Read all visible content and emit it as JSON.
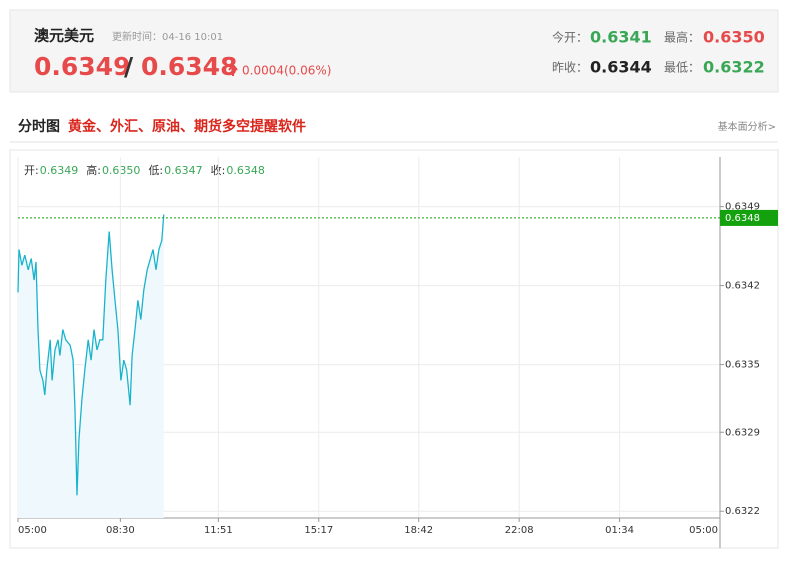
{
  "header": {
    "name": "澳元美元",
    "update_time": "更新时间：04-16 10:01",
    "bid": "0.6349",
    "separator": "/",
    "ask": "0.6348",
    "change": "0.0004(0.06%)",
    "stats": [
      {
        "label": "今开：",
        "value": "0.6341"
      },
      {
        "label": "最高：",
        "value": "0.6350"
      },
      {
        "label": "昨收：",
        "value": "0.6344"
      },
      {
        "label": "最低：",
        "value": "0.6322"
      }
    ]
  },
  "section": {
    "title": "分时图",
    "promo": "黄金、外汇、原油、期货多空提醒软件",
    "link": "基本面分析>"
  },
  "ohlc": [
    {
      "label": "开:",
      "value": "0.6349"
    },
    {
      "label": "高:",
      "value": "0.6350"
    },
    {
      "label": "低:",
      "value": "0.6347"
    },
    {
      "label": "收:",
      "value": "0.6348"
    }
  ],
  "chart_data": {
    "type": "line",
    "color": "#19b4cc",
    "area_color": "#eef8fd",
    "grid": true,
    "x": [
      0,
      2,
      8,
      14,
      21,
      27,
      33,
      37,
      41,
      45,
      51,
      55,
      59,
      66,
      70,
      76,
      82,
      86,
      92,
      98,
      107,
      113,
      117,
      121,
      125,
      131,
      137,
      144,
      150,
      156,
      162,
      168,
      174,
      180,
      187,
      193,
      199,
      205,
      211,
      217,
      223,
      230,
      234,
      240,
      246,
      252,
      258,
      265,
      271,
      277,
      283,
      289,
      295,
      299
    ],
    "values": [
      0.63414,
      0.63452,
      0.63438,
      0.63447,
      0.63434,
      0.63444,
      0.63425,
      0.63441,
      0.63381,
      0.63345,
      0.63336,
      0.63323,
      0.63345,
      0.63372,
      0.63336,
      0.63363,
      0.63372,
      0.63358,
      0.63381,
      0.63372,
      0.63367,
      0.63354,
      0.6331,
      0.63234,
      0.63283,
      0.63319,
      0.63345,
      0.63372,
      0.63354,
      0.63381,
      0.63363,
      0.63372,
      0.63372,
      0.63425,
      0.63468,
      0.63434,
      0.63407,
      0.63381,
      0.63336,
      0.63354,
      0.63345,
      0.63314,
      0.63358,
      0.63381,
      0.63407,
      0.6339,
      0.63416,
      0.63434,
      0.63443,
      0.63452,
      0.63434,
      0.63452,
      0.6346,
      0.63483
    ],
    "xlim": [
      0,
      1440
    ],
    "xticks": [
      {
        "value": 0,
        "label": "05:00"
      },
      {
        "value": 210,
        "label": "08:30"
      },
      {
        "value": 411,
        "label": "11:51"
      },
      {
        "value": 617,
        "label": "15:17"
      },
      {
        "value": 822,
        "label": "18:42"
      },
      {
        "value": 1028,
        "label": "22:08"
      },
      {
        "value": 1234,
        "label": "01:34"
      },
      {
        "value": 1440,
        "label": "05:00"
      }
    ],
    "ylim": [
      0.63214,
      0.63534
    ],
    "yticks": [
      0.6322,
      0.6329,
      0.6335,
      0.6342,
      0.6349
    ],
    "last": 0.6348,
    "last_color": "#13a10e"
  }
}
